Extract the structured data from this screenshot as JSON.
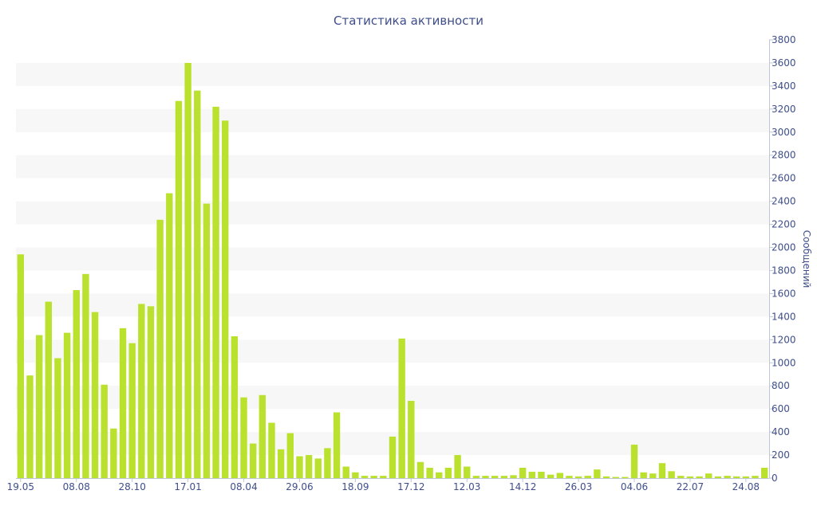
{
  "chart_data": {
    "type": "bar",
    "title": "Статистика активности",
    "xlabel": "",
    "ylabel": "Сообщений",
    "ylim": [
      0,
      3800
    ],
    "y_ticks": [
      0,
      200,
      400,
      600,
      800,
      1000,
      1200,
      1400,
      1600,
      1800,
      2000,
      2200,
      2400,
      2600,
      2800,
      3000,
      3200,
      3400,
      3600,
      3800
    ],
    "y_axis_position": "right",
    "x_tick_labels": [
      {
        "label": "19.05",
        "index": 0
      },
      {
        "label": "08.08",
        "index": 6
      },
      {
        "label": "28.10",
        "index": 12
      },
      {
        "label": "17.01",
        "index": 18
      },
      {
        "label": "08.04",
        "index": 24
      },
      {
        "label": "29.06",
        "index": 30
      },
      {
        "label": "18.09",
        "index": 36
      },
      {
        "label": "17.12",
        "index": 42
      },
      {
        "label": "12.03",
        "index": 48
      },
      {
        "label": "14.12",
        "index": 54
      },
      {
        "label": "26.03",
        "index": 60
      },
      {
        "label": "04.06",
        "index": 66
      },
      {
        "label": "22.07",
        "index": 72
      },
      {
        "label": "24.08",
        "index": 78
      }
    ],
    "values": [
      1940,
      890,
      1240,
      1530,
      1040,
      1260,
      1630,
      1770,
      1440,
      810,
      430,
      1300,
      1170,
      1510,
      1490,
      2240,
      2470,
      3270,
      3600,
      3360,
      2380,
      3220,
      3100,
      1230,
      700,
      300,
      720,
      480,
      250,
      390,
      190,
      200,
      170,
      260,
      570,
      100,
      50,
      20,
      20,
      20,
      360,
      1210,
      670,
      140,
      90,
      50,
      90,
      200,
      100,
      20,
      20,
      20,
      20,
      25,
      90,
      55,
      55,
      30,
      45,
      20,
      15,
      20,
      75,
      15,
      10,
      10,
      290,
      50,
      40,
      130,
      60,
      20,
      15,
      15,
      40,
      15,
      20,
      15,
      15,
      20,
      90
    ],
    "bar_color": "#b9e12e",
    "grid": "alternating-horizontal-bands",
    "band_color": "#f7f7f7",
    "text_color": "#3e4e8c"
  }
}
